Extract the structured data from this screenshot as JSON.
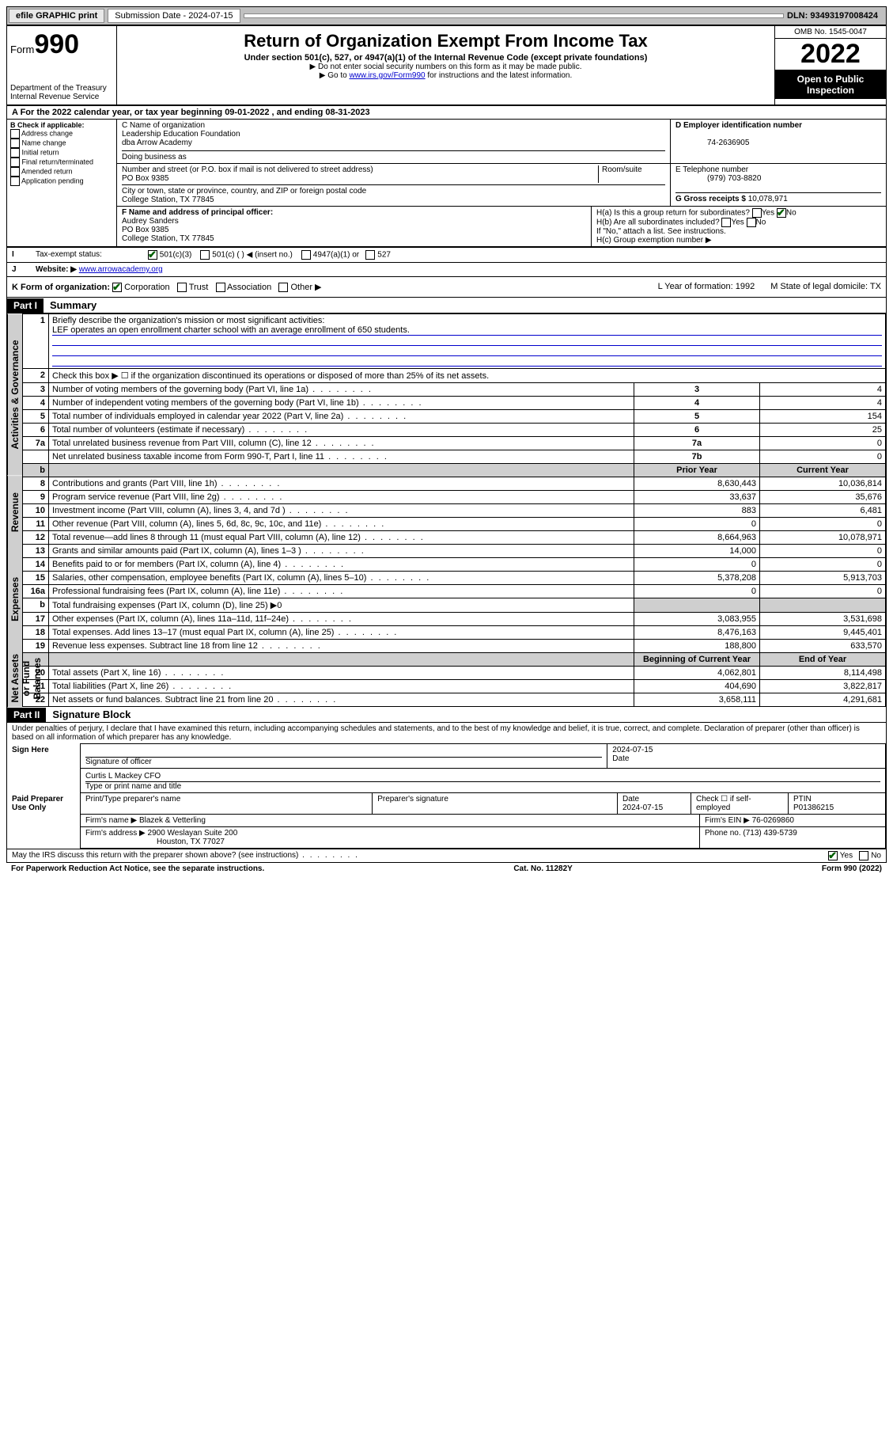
{
  "top_bar": {
    "efile": "efile GRAPHIC print",
    "submission_label": "Submission Date - 2024-07-15",
    "dln": "DLN: 93493197008424"
  },
  "header": {
    "form_label": "Form",
    "form_number": "990",
    "dept": "Department of the Treasury\nInternal Revenue Service",
    "title": "Return of Organization Exempt From Income Tax",
    "subtitle": "Under section 501(c), 527, or 4947(a)(1) of the Internal Revenue Code (except private foundations)",
    "line1": "▶ Do not enter social security numbers on this form as it may be made public.",
    "line2_pre": "▶ Go to ",
    "line2_link": "www.irs.gov/Form990",
    "line2_post": " for instructions and the latest information.",
    "omb": "OMB No. 1545-0047",
    "year": "2022",
    "open_public": "Open to Public Inspection"
  },
  "row_a": "A For the 2022 calendar year, or tax year beginning 09-01-2022   , and ending 08-31-2023",
  "section_b": {
    "title": "B Check if applicable:",
    "items": [
      "Address change",
      "Name change",
      "Initial return",
      "Final return/terminated",
      "Amended return",
      "Application pending"
    ]
  },
  "section_c": {
    "label_name": "C Name of organization",
    "org_name": "Leadership Education Foundation",
    "dba": "dba Arrow Academy",
    "dba_label": "Doing business as",
    "addr_label": "Number and street (or P.O. box if mail is not delivered to street address)",
    "room_label": "Room/suite",
    "addr": "PO Box 9385",
    "city_label": "City or town, state or province, country, and ZIP or foreign postal code",
    "city": "College Station, TX  77845"
  },
  "section_d": {
    "label": "D Employer identification number",
    "value": "74-2636905"
  },
  "section_e": {
    "label": "E Telephone number",
    "value": "(979) 703-8820"
  },
  "section_g": {
    "label": "G Gross receipts $",
    "value": "10,078,971"
  },
  "section_f": {
    "label": "F Name and address of principal officer:",
    "name": "Audrey Sanders",
    "addr1": "PO Box 9385",
    "addr2": "College Station, TX  77845"
  },
  "section_h": {
    "a": "H(a)  Is this a group return for subordinates?",
    "a_yes": "Yes",
    "a_no": "No",
    "b": "H(b)  Are all subordinates included?",
    "b_note": "If \"No,\" attach a list. See instructions.",
    "c": "H(c)  Group exemption number ▶"
  },
  "line_i": {
    "label": "Tax-exempt status:",
    "opts": [
      "501(c)(3)",
      "501(c) (   ) ◀ (insert no.)",
      "4947(a)(1) or",
      "527"
    ]
  },
  "line_j": {
    "label": "Website: ▶",
    "value": "www.arrowacademy.org"
  },
  "line_k": {
    "label": "K Form of organization:",
    "opts": [
      "Corporation",
      "Trust",
      "Association",
      "Other ▶"
    ],
    "l": "L Year of formation: 1992",
    "m": "M State of legal domicile: TX"
  },
  "part1": {
    "header": "Part I",
    "title": "Summary",
    "vtabs": [
      "Activities & Governance",
      "Revenue",
      "Expenses",
      "Net Assets or Fund Balances"
    ],
    "line1_label": "Briefly describe the organization's mission or most significant activities:",
    "line1_text": "LEF operates an open enrollment charter school with an average enrollment of 650 students.",
    "line2": "Check this box ▶ ☐  if the organization discontinued its operations or disposed of more than 25% of its net assets.",
    "rows_top": [
      {
        "n": "3",
        "desc": "Number of voting members of the governing body (Part VI, line 1a)",
        "box": "3",
        "val": "4"
      },
      {
        "n": "4",
        "desc": "Number of independent voting members of the governing body (Part VI, line 1b)",
        "box": "4",
        "val": "4"
      },
      {
        "n": "5",
        "desc": "Total number of individuals employed in calendar year 2022 (Part V, line 2a)",
        "box": "5",
        "val": "154"
      },
      {
        "n": "6",
        "desc": "Total number of volunteers (estimate if necessary)",
        "box": "6",
        "val": "25"
      },
      {
        "n": "7a",
        "desc": "Total unrelated business revenue from Part VIII, column (C), line 12",
        "box": "7a",
        "val": "0"
      },
      {
        "n": "",
        "desc": "Net unrelated business taxable income from Form 990-T, Part I, line 11",
        "box": "7b",
        "val": "0"
      }
    ],
    "col_headers": {
      "b": "b",
      "prior": "Prior Year",
      "current": "Current Year"
    },
    "rows_rev": [
      {
        "n": "8",
        "desc": "Contributions and grants (Part VIII, line 1h)",
        "prior": "8,630,443",
        "curr": "10,036,814"
      },
      {
        "n": "9",
        "desc": "Program service revenue (Part VIII, line 2g)",
        "prior": "33,637",
        "curr": "35,676"
      },
      {
        "n": "10",
        "desc": "Investment income (Part VIII, column (A), lines 3, 4, and 7d )",
        "prior": "883",
        "curr": "6,481"
      },
      {
        "n": "11",
        "desc": "Other revenue (Part VIII, column (A), lines 5, 6d, 8c, 9c, 10c, and 11e)",
        "prior": "0",
        "curr": "0"
      },
      {
        "n": "12",
        "desc": "Total revenue—add lines 8 through 11 (must equal Part VIII, column (A), line 12)",
        "prior": "8,664,963",
        "curr": "10,078,971"
      }
    ],
    "rows_exp": [
      {
        "n": "13",
        "desc": "Grants and similar amounts paid (Part IX, column (A), lines 1–3 )",
        "prior": "14,000",
        "curr": "0"
      },
      {
        "n": "14",
        "desc": "Benefits paid to or for members (Part IX, column (A), line 4)",
        "prior": "0",
        "curr": "0"
      },
      {
        "n": "15",
        "desc": "Salaries, other compensation, employee benefits (Part IX, column (A), lines 5–10)",
        "prior": "5,378,208",
        "curr": "5,913,703"
      },
      {
        "n": "16a",
        "desc": "Professional fundraising fees (Part IX, column (A), line 11e)",
        "prior": "0",
        "curr": "0"
      },
      {
        "n": "b",
        "desc": "Total fundraising expenses (Part IX, column (D), line 25) ▶0",
        "prior": "",
        "curr": "",
        "grey": true
      },
      {
        "n": "17",
        "desc": "Other expenses (Part IX, column (A), lines 11a–11d, 11f–24e)",
        "prior": "3,083,955",
        "curr": "3,531,698"
      },
      {
        "n": "18",
        "desc": "Total expenses. Add lines 13–17 (must equal Part IX, column (A), line 25)",
        "prior": "8,476,163",
        "curr": "9,445,401"
      },
      {
        "n": "19",
        "desc": "Revenue less expenses. Subtract line 18 from line 12",
        "prior": "188,800",
        "curr": "633,570"
      }
    ],
    "col_headers2": {
      "begin": "Beginning of Current Year",
      "end": "End of Year"
    },
    "rows_net": [
      {
        "n": "20",
        "desc": "Total assets (Part X, line 16)",
        "prior": "4,062,801",
        "curr": "8,114,498"
      },
      {
        "n": "21",
        "desc": "Total liabilities (Part X, line 26)",
        "prior": "404,690",
        "curr": "3,822,817"
      },
      {
        "n": "22",
        "desc": "Net assets or fund balances. Subtract line 21 from line 20",
        "prior": "3,658,111",
        "curr": "4,291,681"
      }
    ]
  },
  "part2": {
    "header": "Part II",
    "title": "Signature Block",
    "declaration": "Under penalties of perjury, I declare that I have examined this return, including accompanying schedules and statements, and to the best of my knowledge and belief, it is true, correct, and complete. Declaration of preparer (other than officer) is based on all information of which preparer has any knowledge.",
    "sign_here": "Sign Here",
    "sig_officer": "Signature of officer",
    "sig_date": "Date",
    "sig_date_val": "2024-07-15",
    "officer_name": "Curtis L Mackey CFO",
    "type_name": "Type or print name and title",
    "paid": "Paid Preparer Use Only",
    "prep_name_lbl": "Print/Type preparer's name",
    "prep_sig_lbl": "Preparer's signature",
    "prep_date_lbl": "Date",
    "prep_date_val": "2024-07-15",
    "prep_check_lbl": "Check ☐ if self-employed",
    "ptin_lbl": "PTIN",
    "ptin_val": "P01386215",
    "firm_name_lbl": "Firm's name    ▶",
    "firm_name": "Blazek & Vetterling",
    "firm_ein_lbl": "Firm's EIN ▶",
    "firm_ein": "76-0269860",
    "firm_addr_lbl": "Firm's address ▶",
    "firm_addr1": "2900 Weslayan Suite 200",
    "firm_addr2": "Houston, TX  77027",
    "firm_phone_lbl": "Phone no.",
    "firm_phone": "(713) 439-5739",
    "discuss": "May the IRS discuss this return with the preparer shown above? (see instructions)",
    "yes": "Yes",
    "no": "No"
  },
  "footer": {
    "left": "For Paperwork Reduction Act Notice, see the separate instructions.",
    "mid": "Cat. No. 11282Y",
    "right": "Form 990 (2022)"
  }
}
